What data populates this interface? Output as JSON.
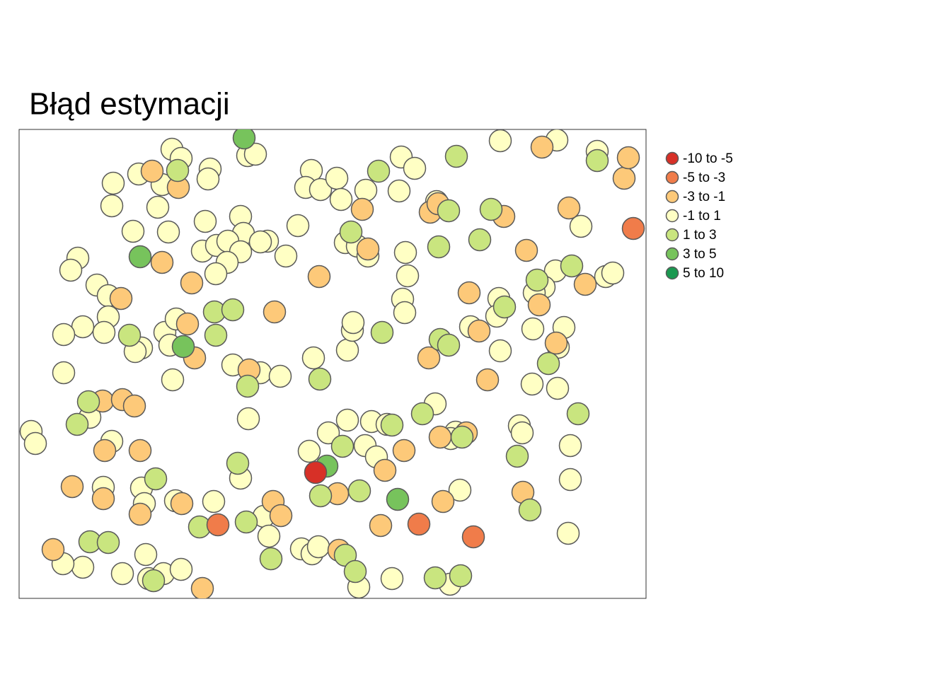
{
  "chart_data": {
    "type": "scatter",
    "title": "Błąd estymacji",
    "xlim": [
      27,
      913
    ],
    "ylim": [
      846,
      183
    ],
    "series": [
      {
        "name": "-10 to -5",
        "color": "#d73027",
        "x": [
          446
        ],
        "values": [
          668
        ]
      },
      {
        "name": "-5 to -3",
        "color": "#f07c4a",
        "x": [
          895,
          308,
          592,
          669
        ],
        "values": [
          323,
          742,
          741,
          759
        ]
      },
      {
        "name": "-3 to -1",
        "color": "#fdc979",
        "x": [
          215,
          252,
          229,
          271,
          451,
          171,
          265,
          388,
          275,
          352,
          145,
          173,
          190,
          148,
          198,
          102,
          146,
          198,
          257,
          386,
          397,
          75,
          286,
          477,
          479,
          538,
          544,
          571,
          512,
          520,
          608,
          619,
          712,
          663,
          677,
          606,
          689,
          622,
          659,
          626,
          739,
          744,
          762,
          786,
          804,
          827,
          882,
          888,
          766
        ],
        "values": [
          242,
          265,
          371,
          400,
          391,
          422,
          458,
          441,
          506,
          523,
          567,
          565,
          574,
          637,
          637,
          688,
          705,
          727,
          712,
          709,
          729,
          777,
          832,
          698,
          778,
          743,
          665,
          637,
          296,
          352,
          300,
          288,
          306,
          414,
          468,
          506,
          537,
          618,
          612,
          709,
          696,
          354,
          431,
          485,
          294,
          402,
          252,
          223,
          208
        ]
      },
      {
        "name": "-1 to 1",
        "color": "#ffffc4",
        "x": [
          243,
          256,
          160,
          196,
          229,
          297,
          294,
          158,
          223,
          188,
          238,
          290,
          340,
          344,
          378,
          368,
          286,
          306,
          322,
          340,
          321,
          305,
          404,
          421,
          350,
          361,
          440,
          432,
          453,
          476,
          482,
          517,
          564,
          567,
          586,
          488,
          505,
          520,
          573,
          576,
          569,
          572,
          617,
          707,
          787,
          844,
          821,
          856,
          866,
          785,
          769,
          755,
          705,
          702,
          665,
          753,
          797,
          789,
          707,
          752,
          788,
          615,
          110,
          100,
          137,
          153,
          153,
          147,
          117,
          90,
          200,
          191,
          233,
          240,
          249,
          244,
          90,
          329,
          368,
          396,
          443,
          491,
          498,
          499,
          351,
          127,
          158,
          44,
          50,
          437,
          464,
          491,
          525,
          547,
          516,
          532,
          644,
          637,
          650,
          734,
          738,
          806,
          806,
          803,
          146,
          200,
          204,
          248,
          302,
          340,
          373,
          380,
          206,
          117,
          89,
          173,
          210,
          231,
          256,
          426,
          441,
          450,
          507,
          554,
          636
        ],
        "values": [
          211,
          224,
          259,
          246,
          261,
          239,
          253,
          291,
          293,
          327,
          328,
          313,
          306,
          330,
          341,
          342,
          355,
          347,
          341,
          356,
          371,
          387,
          362,
          319,
          220,
          218,
          241,
          265,
          268,
          252,
          282,
          269,
          270,
          222,
          238,
          343,
          348,
          362,
          357,
          390,
          423,
          442,
          285,
          199,
          198,
          214,
          320,
          391,
          386,
          383,
          406,
          414,
          422,
          447,
          462,
          465,
          463,
          491,
          496,
          543,
          549,
          571,
          365,
          382,
          403,
          418,
          448,
          470,
          462,
          473,
          492,
          497,
          470,
          488,
          451,
          537,
          527,
          516,
          527,
          532,
          506,
          495,
          467,
          456,
          592,
          590,
          624,
          610,
          627,
          638,
          612,
          594,
          596,
          600,
          630,
          646,
          611,
          620,
          693,
          602,
          612,
          630,
          678,
          754,
          689,
          690,
          712,
          708,
          709,
          676,
          730,
          758,
          784,
          802,
          797,
          811,
          818,
          811,
          805,
          776,
          783,
          773,
          830,
          818,
          826
        ]
      },
      {
        "name": "1 to 3",
        "color": "#c9e57f",
        "x": [
          251,
          535,
          645,
          634,
          694,
          678,
          620,
          496,
          844,
          759,
          713,
          808,
          622,
          634,
          540,
          303,
          329,
          305,
          183,
          452,
          350,
          125,
          109,
          597,
          554,
          484,
          653,
          817,
          775,
          731,
          749,
          508,
          453,
          336,
          220,
          282,
          348,
          383,
          127,
          153,
          217,
          488,
          502,
          615,
          651
        ],
        "values": [
          241,
          242,
          221,
          298,
          296,
          339,
          349,
          328,
          227,
          396,
          434,
          376,
          480,
          488,
          470,
          441,
          438,
          474,
          474,
          536,
          546,
          568,
          600,
          585,
          601,
          631,
          618,
          585,
          514,
          645,
          721,
          694,
          701,
          655,
          677,
          745,
          738,
          790,
          766,
          767,
          821,
          785,
          808,
          817,
          814
        ]
      },
      {
        "name": "3 to 5",
        "color": "#77c35c",
        "x": [
          345,
          198,
          259,
          462,
          562
        ],
        "values": [
          195,
          363,
          490,
          659,
          706
        ]
      },
      {
        "name": "5 to 10",
        "color": "#1a9850",
        "x": [],
        "values": []
      }
    ]
  }
}
